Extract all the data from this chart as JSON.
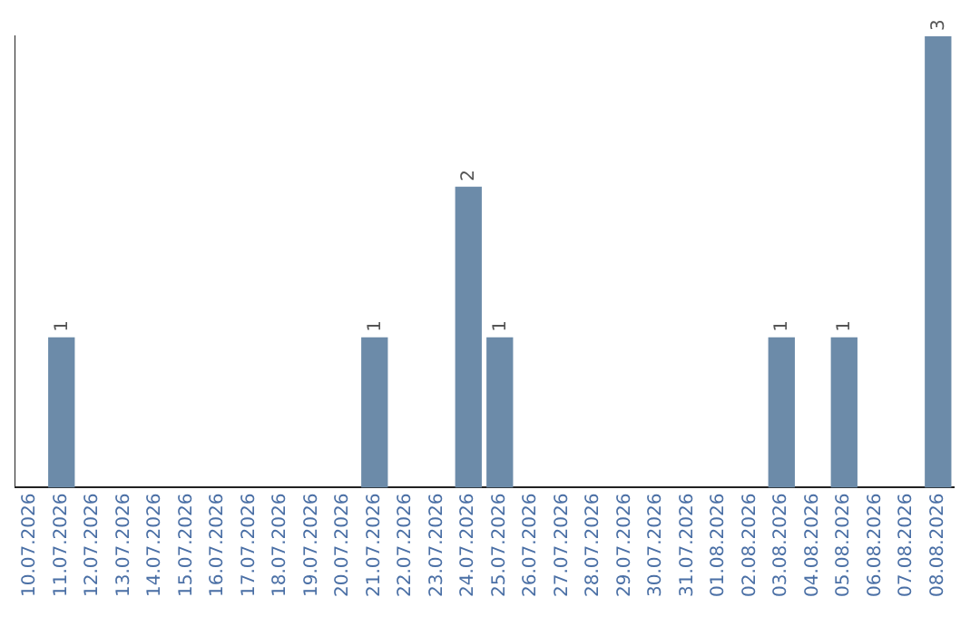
{
  "chart_data": {
    "type": "bar",
    "categories": [
      "10.07.2026",
      "11.07.2026",
      "12.07.2026",
      "13.07.2026",
      "14.07.2026",
      "15.07.2026",
      "16.07.2026",
      "17.07.2026",
      "18.07.2026",
      "19.07.2026",
      "20.07.2026",
      "21.07.2026",
      "22.07.2026",
      "23.07.2026",
      "24.07.2026",
      "25.07.2026",
      "26.07.2026",
      "27.07.2026",
      "28.07.2026",
      "29.07.2026",
      "30.07.2026",
      "31.07.2026",
      "01.08.2026",
      "02.08.2026",
      "03.08.2026",
      "04.08.2026",
      "05.08.2026",
      "06.08.2026",
      "07.08.2026",
      "08.08.2026"
    ],
    "values": [
      0,
      1,
      0,
      0,
      0,
      0,
      0,
      0,
      0,
      0,
      0,
      1,
      0,
      0,
      2,
      1,
      0,
      0,
      0,
      0,
      0,
      0,
      0,
      0,
      1,
      0,
      1,
      0,
      0,
      3
    ],
    "value_labels": [
      null,
      "1",
      null,
      null,
      null,
      null,
      null,
      null,
      null,
      null,
      null,
      "1",
      null,
      null,
      "2",
      "1",
      null,
      null,
      null,
      null,
      null,
      null,
      null,
      null,
      "1",
      null,
      "1",
      null,
      null,
      "3"
    ],
    "color": "#6c8ba9",
    "grid": false,
    "legend": false
  }
}
